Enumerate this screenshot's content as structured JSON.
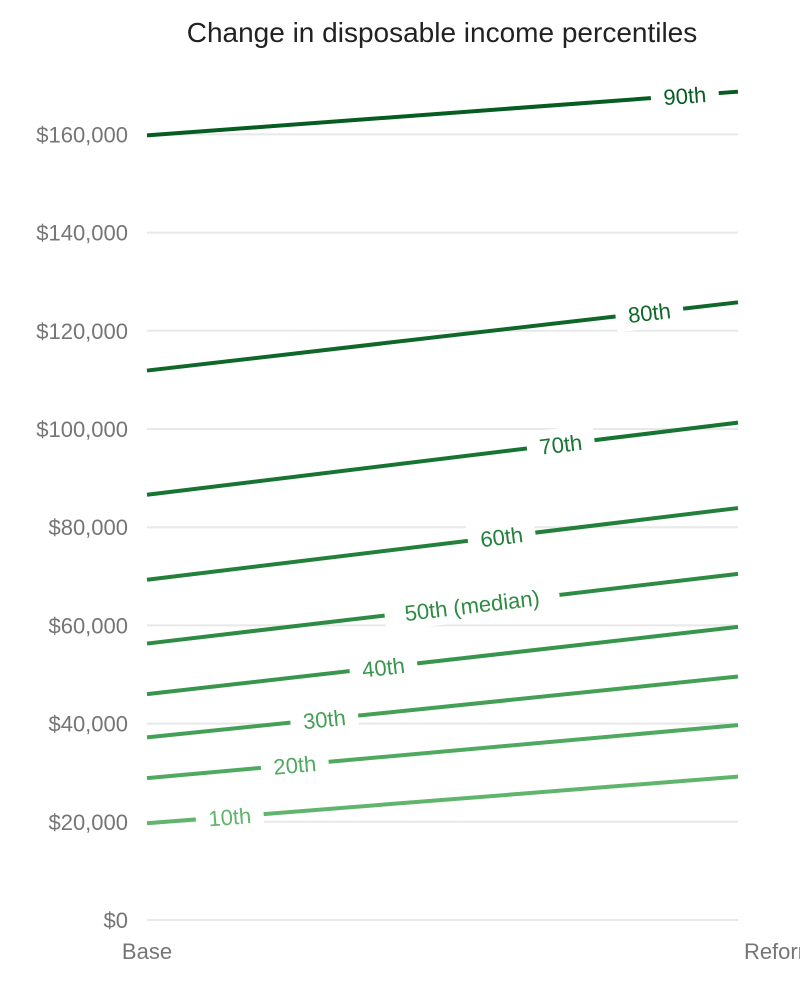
{
  "chart_data": {
    "type": "line",
    "title": "Change in disposable income percentiles",
    "categories": [
      "Base",
      "Reform"
    ],
    "ylim": [
      0,
      170000
    ],
    "y_ticks": [
      0,
      20000,
      40000,
      60000,
      80000,
      100000,
      120000,
      140000,
      160000
    ],
    "y_tick_labels": [
      "$0",
      "$20,000",
      "$40,000",
      "$60,000",
      "$80,000",
      "$100,000",
      "$120,000",
      "$140,000",
      "$160,000"
    ],
    "grid": true,
    "legend": "none (inline labels)",
    "series": [
      {
        "name": "10th",
        "values": [
          19700,
          29200
        ],
        "color": "#5fb56b"
      },
      {
        "name": "20th",
        "values": [
          28900,
          39700
        ],
        "color": "#4faa5f"
      },
      {
        "name": "30th",
        "values": [
          37200,
          49600
        ],
        "color": "#43a055"
      },
      {
        "name": "40th",
        "values": [
          46000,
          59700
        ],
        "color": "#38964c"
      },
      {
        "name": "50th (median)",
        "values": [
          56300,
          70500
        ],
        "color": "#2e8b44"
      },
      {
        "name": "60th",
        "values": [
          69300,
          83900
        ],
        "color": "#22803b"
      },
      {
        "name": "70th",
        "values": [
          86600,
          101300
        ],
        "color": "#187432"
      },
      {
        "name": "80th",
        "values": [
          111900,
          125800
        ],
        "color": "#0f6829"
      },
      {
        "name": "90th",
        "values": [
          159800,
          168700
        ],
        "color": "#075c21"
      }
    ]
  }
}
